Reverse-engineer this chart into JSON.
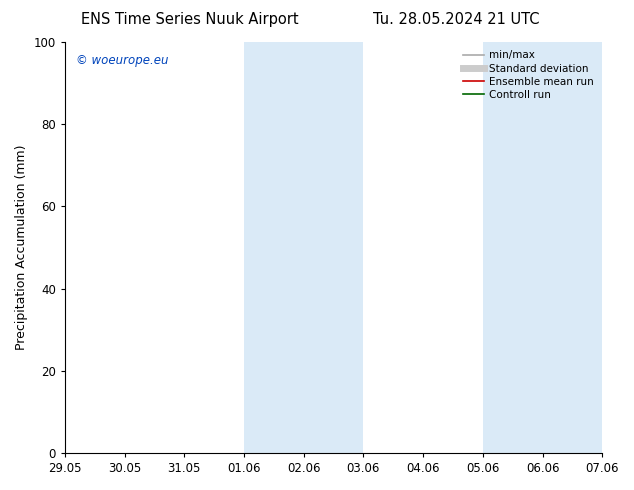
{
  "title_left": "ENS Time Series Nuuk Airport",
  "title_right": "Tu. 28.05.2024 21 UTC",
  "ylabel": "Precipitation Accumulation (mm)",
  "ylim": [
    0,
    100
  ],
  "yticks": [
    0,
    20,
    40,
    60,
    80,
    100
  ],
  "xtick_labels": [
    "29.05",
    "30.05",
    "31.05",
    "01.06",
    "02.06",
    "03.06",
    "04.06",
    "05.06",
    "06.06",
    "07.06"
  ],
  "shaded_regions": [
    {
      "x_start": 3,
      "x_end": 5,
      "color": "#daeaf7"
    },
    {
      "x_start": 7,
      "x_end": 9,
      "color": "#daeaf7"
    }
  ],
  "watermark_text": "© woeurope.eu",
  "watermark_color": "#0044bb",
  "legend_items": [
    {
      "label": "min/max",
      "color": "#aaaaaa",
      "lw": 1.2,
      "ls": "-"
    },
    {
      "label": "Standard deviation",
      "color": "#cccccc",
      "lw": 5,
      "ls": "-"
    },
    {
      "label": "Ensemble mean run",
      "color": "#cc0000",
      "lw": 1.2,
      "ls": "-"
    },
    {
      "label": "Controll run",
      "color": "#006600",
      "lw": 1.2,
      "ls": "-"
    }
  ],
  "title_fontsize": 10.5,
  "axis_fontsize": 9,
  "tick_fontsize": 8.5,
  "bg_color": "#ffffff",
  "plot_bg_color": "#ffffff",
  "x_min": 0,
  "x_max": 9
}
